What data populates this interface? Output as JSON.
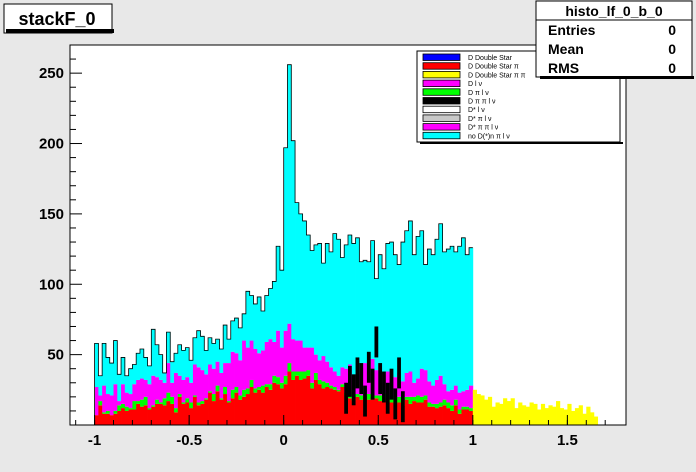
{
  "title_box": {
    "text": "stackF_0"
  },
  "stats_box": {
    "name": "histo_lf_0_b_0",
    "rows": [
      {
        "label": "Entries",
        "value": "0"
      },
      {
        "label": "Mean",
        "value": "0"
      },
      {
        "label": "RMS",
        "value": "0"
      }
    ]
  },
  "chart_data": {
    "type": "bar",
    "stacked": true,
    "xlabel": "",
    "ylabel": "",
    "xlim": [
      -1.13,
      1.81
    ],
    "ylim": [
      0,
      270
    ],
    "x_ticks": [
      -1,
      -0.5,
      0,
      0.5,
      1,
      1.5
    ],
    "x_tick_labels": [
      "-1",
      "-0.5",
      "0",
      "0.5",
      "1",
      "1.5"
    ],
    "y_ticks": [
      50,
      100,
      150,
      200,
      250
    ],
    "y_tick_labels": [
      "50",
      "100",
      "150",
      "200",
      "250"
    ],
    "grid": false,
    "legend_position": "top-right",
    "legend": [
      {
        "label": "D Double Star",
        "color": "#0000ff"
      },
      {
        "label": "D Double Star π",
        "color": "#ff0000"
      },
      {
        "label": "D Double Star π π",
        "color": "#ffff00"
      },
      {
        "label": "D l ν",
        "color": "#ff00ff"
      },
      {
        "label": "D π l ν",
        "color": "#00ff00"
      },
      {
        "label": "D π π l ν",
        "color": "#000000"
      },
      {
        "label": "D* l ν",
        "color": "#ffffff"
      },
      {
        "label": "D* π l ν",
        "color": "#c8c8c8"
      },
      {
        "label": "D* π π l ν",
        "color": "#ff00ff"
      },
      {
        "label": "no D(*)n π l ν",
        "color": "#00ffff"
      }
    ],
    "bins": [
      [
        -1.0,
        7,
        0,
        20,
        31
      ],
      [
        -0.98,
        14,
        3,
        4,
        14
      ],
      [
        -0.96,
        8,
        1,
        19,
        30
      ],
      [
        -0.94,
        8,
        2,
        12,
        26
      ],
      [
        -0.92,
        7,
        0,
        14,
        23
      ],
      [
        -0.9,
        8,
        2,
        19,
        31
      ],
      [
        -0.88,
        10,
        4,
        3,
        19
      ],
      [
        -0.86,
        12,
        3,
        14,
        19
      ],
      [
        -0.84,
        10,
        3,
        10,
        12
      ],
      [
        -0.82,
        11,
        1,
        10,
        18
      ],
      [
        -0.8,
        11,
        6,
        12,
        14
      ],
      [
        -0.78,
        15,
        2,
        15,
        19
      ],
      [
        -0.76,
        13,
        5,
        15,
        21
      ],
      [
        -0.74,
        14,
        6,
        12,
        16
      ],
      [
        -0.72,
        11,
        1,
        17,
        13
      ],
      [
        -0.7,
        13,
        1,
        21,
        33
      ],
      [
        -0.68,
        15,
        3,
        16,
        23
      ],
      [
        -0.66,
        15,
        1,
        16,
        18
      ],
      [
        -0.64,
        14,
        5,
        11,
        7
      ],
      [
        -0.62,
        17,
        6,
        21,
        22
      ],
      [
        -0.6,
        15,
        5,
        10,
        15
      ],
      [
        -0.58,
        9,
        3,
        25,
        14
      ],
      [
        -0.56,
        20,
        2,
        13,
        22
      ],
      [
        -0.54,
        15,
        1,
        16,
        21
      ],
      [
        -0.52,
        16,
        3,
        15,
        21
      ],
      [
        -0.5,
        12,
        4,
        14,
        16
      ],
      [
        -0.48,
        20,
        1,
        22,
        19
      ],
      [
        -0.46,
        14,
        2,
        25,
        26
      ],
      [
        -0.44,
        15,
        2,
        22,
        24
      ],
      [
        -0.42,
        18,
        1,
        17,
        17
      ],
      [
        -0.4,
        23,
        1,
        19,
        19
      ],
      [
        -0.38,
        17,
        5,
        18,
        18
      ],
      [
        -0.36,
        24,
        4,
        17,
        16
      ],
      [
        -0.34,
        18,
        1,
        18,
        17
      ],
      [
        -0.32,
        22,
        5,
        17,
        27
      ],
      [
        -0.3,
        16,
        1,
        27,
        17
      ],
      [
        -0.28,
        19,
        6,
        27,
        22
      ],
      [
        -0.26,
        23,
        4,
        24,
        25
      ],
      [
        -0.24,
        18,
        3,
        25,
        23
      ],
      [
        -0.22,
        20,
        5,
        35,
        19
      ],
      [
        -0.2,
        22,
        4,
        29,
        40
      ],
      [
        -0.18,
        27,
        5,
        28,
        32
      ],
      [
        -0.16,
        23,
        3,
        28,
        32
      ],
      [
        -0.14,
        25,
        2,
        24,
        40
      ],
      [
        -0.12,
        23,
        5,
        25,
        28
      ],
      [
        -0.1,
        27,
        2,
        30,
        33
      ],
      [
        -0.08,
        25,
        4,
        32,
        36
      ],
      [
        -0.06,
        30,
        5,
        24,
        43
      ],
      [
        -0.04,
        29,
        5,
        33,
        60
      ],
      [
        -0.02,
        26,
        4,
        25,
        55
      ],
      [
        0.0,
        29,
        6,
        32,
        130
      ],
      [
        0.02,
        38,
        6,
        28,
        184
      ],
      [
        0.04,
        32,
        6,
        23,
        141
      ],
      [
        0.06,
        35,
        3,
        22,
        98
      ],
      [
        0.08,
        32,
        6,
        22,
        90
      ],
      [
        0.1,
        33,
        5,
        17,
        90
      ],
      [
        0.12,
        35,
        4,
        16,
        80
      ],
      [
        0.14,
        26,
        4,
        25,
        69
      ],
      [
        0.16,
        32,
        5,
        13,
        78
      ],
      [
        0.18,
        29,
        3,
        14,
        83
      ],
      [
        0.2,
        26,
        5,
        18,
        66
      ],
      [
        0.22,
        27,
        3,
        15,
        84
      ],
      [
        0.24,
        26,
        2,
        13,
        82
      ],
      [
        0.26,
        25,
        2,
        11,
        98
      ],
      [
        0.28,
        24,
        1,
        10,
        97
      ],
      [
        0.3,
        27,
        2,
        12,
        78
      ],
      [
        0.32,
        21,
        2,
        17,
        88
      ],
      [
        0.34,
        19,
        6,
        18,
        92
      ],
      [
        0.36,
        17,
        5,
        12,
        95
      ],
      [
        0.38,
        20,
        2,
        14,
        97
      ],
      [
        0.4,
        18,
        3,
        20,
        75
      ],
      [
        0.42,
        21,
        6,
        17,
        73
      ],
      [
        0.44,
        18,
        4,
        16,
        78
      ],
      [
        0.46,
        20,
        5,
        22,
        84
      ],
      [
        0.48,
        19,
        2,
        18,
        65
      ],
      [
        0.5,
        17,
        4,
        22,
        78
      ],
      [
        0.52,
        17,
        5,
        14,
        75
      ],
      [
        0.54,
        20,
        3,
        15,
        91
      ],
      [
        0.56,
        16,
        5,
        15,
        94
      ],
      [
        0.58,
        15,
        3,
        16,
        87
      ],
      [
        0.6,
        16,
        4,
        17,
        77
      ],
      [
        0.62,
        14,
        3,
        14,
        99
      ],
      [
        0.64,
        18,
        2,
        17,
        101
      ],
      [
        0.66,
        15,
        5,
        18,
        107
      ],
      [
        0.68,
        17,
        3,
        10,
        91
      ],
      [
        0.7,
        16,
        5,
        12,
        101
      ],
      [
        0.72,
        16,
        4,
        20,
        98
      ],
      [
        0.74,
        18,
        3,
        18,
        75
      ],
      [
        0.76,
        13,
        3,
        15,
        94
      ],
      [
        0.78,
        13,
        2,
        13,
        93
      ],
      [
        0.8,
        12,
        3,
        17,
        100
      ],
      [
        0.82,
        13,
        3,
        19,
        108
      ],
      [
        0.84,
        14,
        4,
        11,
        94
      ],
      [
        0.86,
        12,
        4,
        8,
        101
      ],
      [
        0.88,
        10,
        4,
        11,
        102
      ],
      [
        0.9,
        14,
        4,
        10,
        95
      ],
      [
        0.92,
        8,
        3,
        12,
        104
      ],
      [
        0.94,
        11,
        2,
        11,
        109
      ],
      [
        0.96,
        11,
        2,
        12,
        96
      ],
      [
        0.98,
        10,
        2,
        16,
        98
      ]
    ],
    "tail_bins": [
      [
        1.0,
        25
      ],
      [
        1.02,
        22
      ],
      [
        1.04,
        21
      ],
      [
        1.06,
        18
      ],
      [
        1.08,
        20
      ],
      [
        1.1,
        13
      ],
      [
        1.12,
        16
      ],
      [
        1.14,
        15
      ],
      [
        1.16,
        19
      ],
      [
        1.18,
        17
      ],
      [
        1.2,
        19
      ],
      [
        1.22,
        12
      ],
      [
        1.24,
        16
      ],
      [
        1.26,
        14
      ],
      [
        1.28,
        13
      ],
      [
        1.3,
        16
      ],
      [
        1.32,
        15
      ],
      [
        1.34,
        11
      ],
      [
        1.36,
        15
      ],
      [
        1.38,
        12
      ],
      [
        1.4,
        14
      ],
      [
        1.42,
        13
      ],
      [
        1.44,
        17
      ],
      [
        1.46,
        12
      ],
      [
        1.48,
        11
      ],
      [
        1.5,
        15
      ],
      [
        1.52,
        10
      ],
      [
        1.54,
        12
      ],
      [
        1.56,
        14
      ],
      [
        1.58,
        8
      ],
      [
        1.6,
        13
      ],
      [
        1.62,
        9
      ],
      [
        1.64,
        6
      ]
    ],
    "overlay_bins": [
      [
        0.32,
        0.34,
        30
      ],
      [
        0.34,
        0.36,
        42
      ],
      [
        0.36,
        0.38,
        36
      ],
      [
        0.38,
        0.4,
        48
      ],
      [
        0.4,
        0.42,
        44
      ],
      [
        0.42,
        0.44,
        28
      ],
      [
        0.44,
        0.46,
        52
      ],
      [
        0.46,
        0.48,
        40
      ],
      [
        0.48,
        0.5,
        70
      ],
      [
        0.5,
        0.52,
        44
      ],
      [
        0.52,
        0.54,
        38
      ],
      [
        0.54,
        0.56,
        30
      ],
      [
        0.56,
        0.58,
        40
      ],
      [
        0.58,
        0.6,
        26
      ],
      [
        0.6,
        0.62,
        48
      ],
      [
        0.62,
        0.64,
        24
      ]
    ]
  }
}
